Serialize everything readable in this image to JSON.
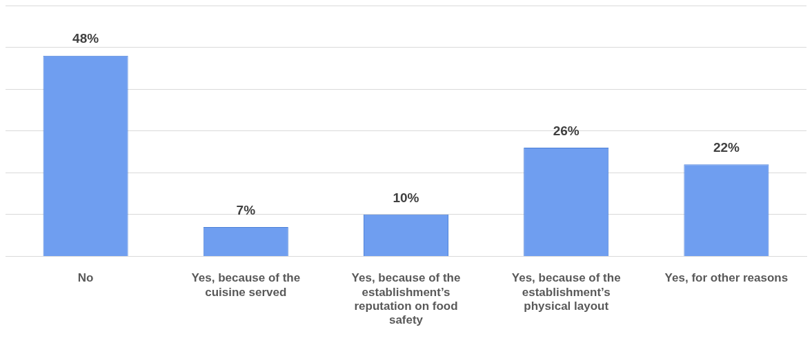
{
  "chart_data": {
    "type": "bar",
    "categories": [
      "No",
      "Yes, because of the cuisine served",
      "Yes, because of the establishment’s reputation on food safety",
      "Yes, because of the establishment’s physical layout",
      "Yes, for other reasons"
    ],
    "values": [
      48,
      7,
      10,
      26,
      22
    ],
    "value_labels": [
      "48%",
      "7%",
      "10%",
      "26%",
      "22%"
    ],
    "color": "#6f9ef0",
    "ylim": [
      0,
      60
    ],
    "yticks": [
      {
        "value": 0,
        "label": null
      },
      {
        "value": 10,
        "label": null
      },
      {
        "value": 20,
        "label": null
      },
      {
        "value": 30,
        "label": null
      },
      {
        "value": 40,
        "label": null
      },
      {
        "value": 50,
        "label": null
      },
      {
        "value": 60,
        "label": null
      }
    ],
    "grid": "y",
    "tick_labels": "x"
  }
}
